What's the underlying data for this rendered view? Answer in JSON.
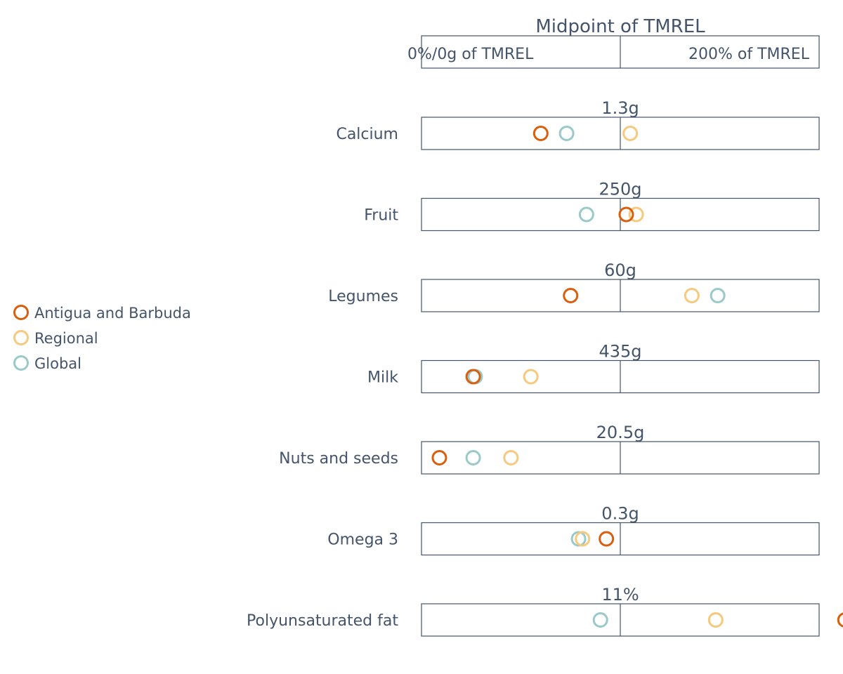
{
  "chart_data": {
    "type": "dot-range",
    "title": "Midpoint of TMREL",
    "scale_left_label": "0%/0g of TMREL",
    "scale_right_label": "200% of TMREL",
    "xlim": [
      0,
      200
    ],
    "x_unit": "percent of TMREL",
    "legend_position": "left",
    "series": [
      {
        "key": "country",
        "name": "Antigua and Barbuda",
        "color": "#d95f0e"
      },
      {
        "key": "regional",
        "name": "Regional",
        "color": "#f7c97e"
      },
      {
        "key": "global",
        "name": "Global",
        "color": "#99c9c8"
      }
    ],
    "rows": [
      {
        "label": "Calcium",
        "tmrel": "1.3g",
        "values": {
          "country": 60,
          "regional": 105,
          "global": 73
        }
      },
      {
        "label": "Fruit",
        "tmrel": "250g",
        "values": {
          "country": 103,
          "regional": 108,
          "global": 83
        }
      },
      {
        "label": "Legumes",
        "tmrel": "60g",
        "values": {
          "country": 75,
          "regional": 136,
          "global": 149
        }
      },
      {
        "label": "Milk",
        "tmrel": "435g",
        "values": {
          "country": 26,
          "regional": 55,
          "global": 27
        }
      },
      {
        "label": "Nuts and seeds",
        "tmrel": "20.5g",
        "values": {
          "country": 9,
          "regional": 45,
          "global": 26
        }
      },
      {
        "label": "Omega 3",
        "tmrel": "0.3g",
        "values": {
          "country": 93,
          "regional": 81,
          "global": 79
        }
      },
      {
        "label": "Polyunsaturated fat",
        "tmrel": "11%",
        "values": {
          "country": 213,
          "regional": 148,
          "global": 90
        }
      }
    ]
  }
}
